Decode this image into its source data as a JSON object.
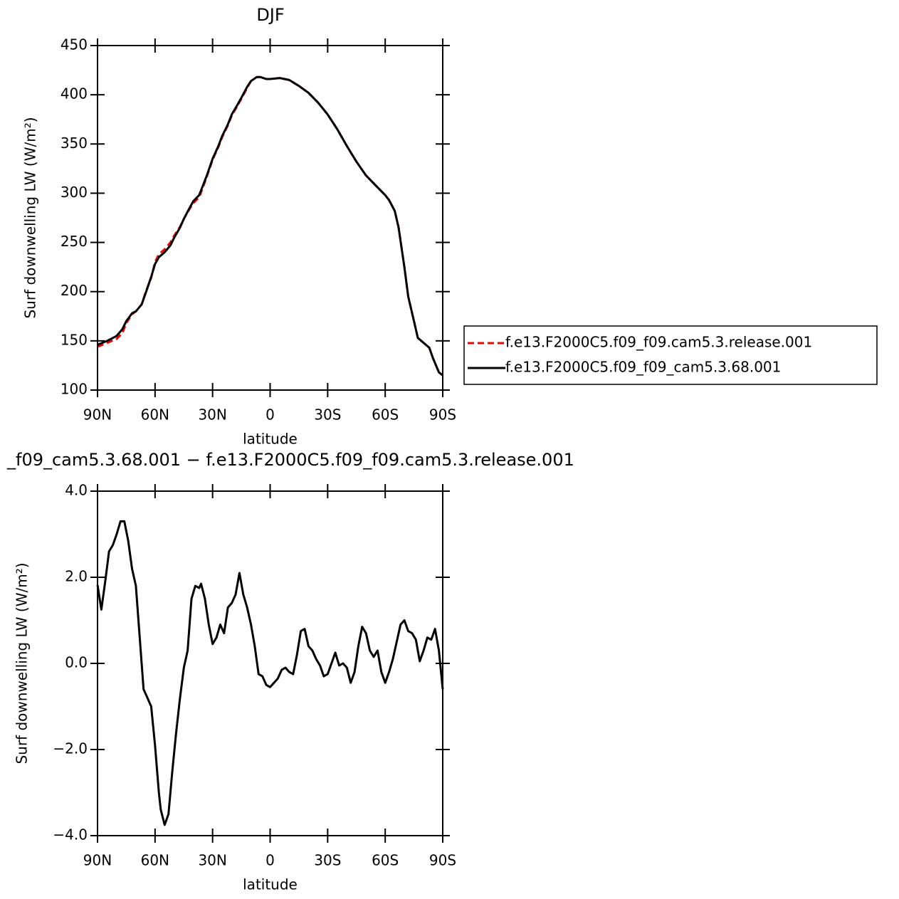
{
  "chart_data": [
    {
      "type": "line",
      "title": "DJF",
      "xlabel": "latitude",
      "ylabel": "Surf downwelling LW (W/m²)",
      "xlim": [
        90,
        -90
      ],
      "xticks": [
        {
          "value": 90,
          "label": "90N"
        },
        {
          "value": 60,
          "label": "60N"
        },
        {
          "value": 30,
          "label": "30N"
        },
        0,
        {
          "value": -30,
          "label": "30S"
        },
        {
          "value": -60,
          "label": "60S"
        },
        {
          "value": -90,
          "label": "90S"
        }
      ],
      "ylim": [
        100,
        450
      ],
      "yticks": [
        100,
        150,
        200,
        250,
        300,
        350,
        400,
        450
      ],
      "legend": "outside-right",
      "x": [
        90,
        85,
        80,
        77,
        75,
        72,
        70,
        67,
        65,
        62,
        60,
        58,
        55,
        52,
        50,
        47,
        45,
        42,
        40,
        37,
        35,
        33,
        30,
        27,
        25,
        22,
        20,
        17,
        15,
        12,
        10,
        7,
        5,
        2,
        0,
        -5,
        -10,
        -15,
        -20,
        -25,
        -30,
        -35,
        -40,
        -45,
        -50,
        -55,
        -60,
        -62,
        -65,
        -67,
        -70,
        -72,
        -75,
        -77,
        -80,
        -83,
        -85,
        -88,
        -90
      ],
      "series": [
        {
          "name": "f.e13.F2000C5.f09_f09.cam5.3.release.001",
          "color": "#ff0000",
          "dash": true,
          "values": [
            144,
            148,
            152,
            158,
            168,
            177,
            180,
            187,
            199,
            214,
            230,
            238,
            243,
            250,
            257,
            266,
            274,
            284,
            290,
            296,
            306,
            317,
            334,
            347,
            357,
            369,
            379,
            389,
            396,
            407,
            414,
            418,
            418,
            416,
            416,
            417,
            415,
            409,
            402,
            392,
            380,
            365,
            348,
            332,
            318,
            308,
            298,
            293,
            282,
            265,
            225,
            195,
            170,
            153,
            148,
            143,
            132,
            118,
            115
          ]
        },
        {
          "name": "f.e13.F2000C5.f09_f09_cam5.3.68.001",
          "color": "#000000",
          "dash": false,
          "values": [
            146,
            150,
            155,
            162,
            170,
            178,
            180,
            187,
            198,
            215,
            228,
            235,
            240,
            247,
            255,
            265,
            274,
            285,
            292,
            298,
            308,
            318,
            335,
            348,
            358,
            370,
            380,
            390,
            397,
            408,
            414,
            418,
            418,
            416,
            416,
            417,
            415,
            409,
            402,
            392,
            380,
            365,
            348,
            332,
            318,
            308,
            298,
            293,
            282,
            265,
            225,
            195,
            170,
            153,
            148,
            143,
            132,
            118,
            115
          ]
        }
      ]
    },
    {
      "type": "line",
      "title": "_f09_cam5.3.68.001 − f.e13.F2000C5.f09_f09.cam5.3.release.001",
      "xlabel": "latitude",
      "ylabel": "Surf downwelling LW (W/m²)",
      "xlim": [
        90,
        -90
      ],
      "xticks": [
        {
          "value": 90,
          "label": "90N"
        },
        {
          "value": 60,
          "label": "60N"
        },
        {
          "value": 30,
          "label": "30N"
        },
        0,
        {
          "value": -30,
          "label": "30S"
        },
        {
          "value": -60,
          "label": "60S"
        },
        {
          "value": -90,
          "label": "90S"
        }
      ],
      "ylim": [
        -4,
        4
      ],
      "yticks": [
        {
          "value": -4,
          "label": "−4.0"
        },
        {
          "value": -2,
          "label": "−2.0"
        },
        {
          "value": 0,
          "label": "0.0"
        },
        {
          "value": 2,
          "label": "2.0"
        },
        {
          "value": 4,
          "label": "4.0"
        }
      ],
      "x": [
        90,
        88,
        86,
        84,
        82,
        80,
        78,
        76,
        74,
        72,
        70,
        68,
        66,
        64,
        62,
        60,
        58,
        57,
        55,
        53,
        51,
        49,
        47,
        45,
        43,
        41,
        39,
        37,
        36,
        34,
        32,
        30,
        28,
        26,
        24,
        22,
        20,
        18,
        16,
        14,
        12,
        10,
        8,
        6,
        4,
        2,
        0,
        -2,
        -4,
        -6,
        -8,
        -10,
        -12,
        -14,
        -16,
        -18,
        -20,
        -22,
        -24,
        -26,
        -28,
        -30,
        -32,
        -34,
        -36,
        -38,
        -40,
        -42,
        -44,
        -46,
        -48,
        -50,
        -52,
        -54,
        -56,
        -58,
        -60,
        -62,
        -64,
        -66,
        -68,
        -70,
        -72,
        -74,
        -76,
        -78,
        -80,
        -82,
        -84,
        -86,
        -88,
        -90
      ],
      "series": [
        {
          "color": "#000000",
          "dash": false,
          "values": [
            1.82,
            1.25,
            1.9,
            2.6,
            2.75,
            3.0,
            3.3,
            3.3,
            2.85,
            2.2,
            1.8,
            0.6,
            -0.6,
            -0.8,
            -1.0,
            -1.9,
            -3.0,
            -3.4,
            -3.75,
            -3.5,
            -2.5,
            -1.6,
            -0.8,
            -0.1,
            0.3,
            1.5,
            1.8,
            1.75,
            1.85,
            1.5,
            0.9,
            0.45,
            0.6,
            0.9,
            0.7,
            1.3,
            1.4,
            1.6,
            2.1,
            1.6,
            1.3,
            0.9,
            0.4,
            -0.25,
            -0.3,
            -0.5,
            -0.55,
            -0.45,
            -0.35,
            -0.15,
            -0.1,
            -0.2,
            -0.25,
            0.2,
            0.75,
            0.8,
            0.4,
            0.3,
            0.1,
            -0.05,
            -0.3,
            -0.25,
            0.0,
            0.25,
            -0.05,
            0.0,
            -0.1,
            -0.45,
            -0.2,
            0.4,
            0.85,
            0.7,
            0.3,
            0.15,
            0.3,
            -0.2,
            -0.45,
            -0.2,
            0.1,
            0.5,
            0.9,
            1.0,
            0.75,
            0.7,
            0.55,
            0.05,
            0.3,
            0.6,
            0.55,
            0.8,
            0.3,
            -0.6
          ]
        }
      ]
    }
  ]
}
